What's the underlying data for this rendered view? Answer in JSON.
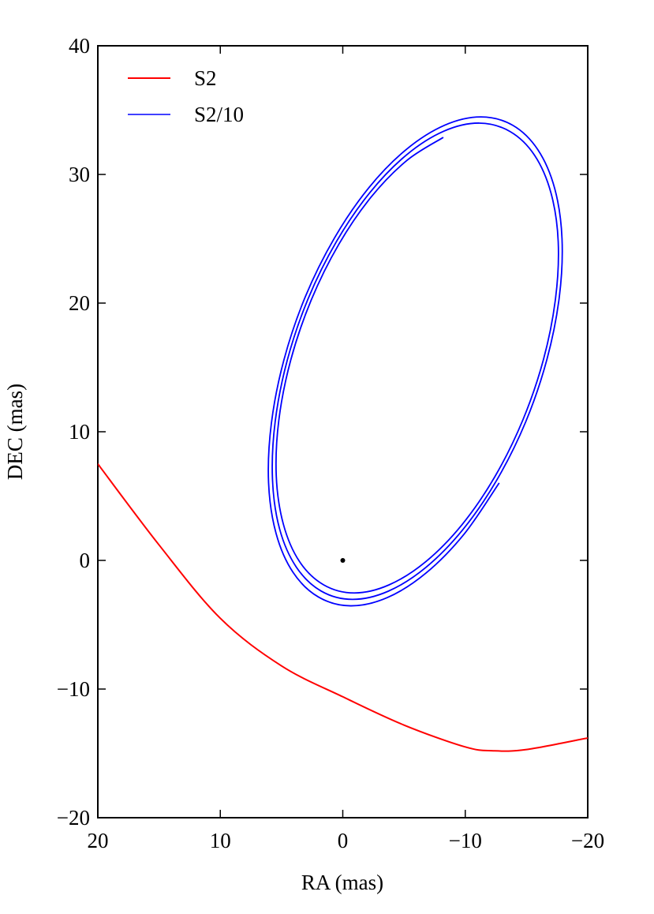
{
  "chart_data": {
    "type": "line",
    "x_label": "RA (mas)",
    "y_label": "DEC (mas)",
    "xlim": [
      20,
      -20
    ],
    "ylim": [
      -20,
      40
    ],
    "xticks": [
      20,
      10,
      0,
      {
        "value": -10,
        "label": "−10"
      },
      {
        "value": -20,
        "label": "−20"
      }
    ],
    "yticks": [
      {
        "value": -20,
        "label": "−20"
      },
      {
        "value": -10,
        "label": "−10"
      },
      0,
      10,
      20,
      30,
      40
    ],
    "legend": "upper left",
    "series": [
      {
        "name": "S2",
        "color": "#ff0000",
        "x": [
          20,
          15,
          10,
          5,
          0,
          -5,
          -10,
          -12.3,
          -15,
          -20
        ],
        "values": [
          7.5,
          1.2,
          -4.5,
          -8.2,
          -10.6,
          -12.8,
          -14.5,
          -14.8,
          -14.7,
          -13.8
        ]
      },
      {
        "name": "S2/10",
        "color": "#0000ff",
        "x": [
          -12.77,
          -9.92,
          -6.8,
          -3.64,
          -0.64,
          1.98,
          4.06,
          5.45,
          6.06,
          5.83,
          4.81,
          3.06,
          0.68,
          -2.13,
          -5.21,
          -8.33,
          -11.28,
          -13.88,
          -15.93,
          -17.3,
          -17.9,
          -17.68,
          -16.67,
          -14.94,
          -12.59,
          -9.82,
          -6.78,
          -3.7,
          -0.79,
          1.77,
          3.8,
          5.16,
          5.74,
          5.52,
          4.53,
          2.82,
          0.5,
          -2.23,
          -5.23,
          -8.27,
          -11.15,
          -13.67,
          -15.66,
          -17.0,
          -17.59,
          -17.37,
          -16.39,
          -14.7,
          -12.42,
          -9.72,
          -6.76,
          -3.76,
          -0.93,
          1.56,
          3.54,
          4.85,
          5.43,
          5.22,
          4.25,
          2.58,
          0.33,
          -2.33,
          -5.25,
          -8.21
        ],
        "values": [
          6.02,
          2.06,
          -0.98,
          -2.89,
          -3.53,
          -2.85,
          -0.93,
          2.11,
          6.05,
          10.65,
          15.57,
          20.49,
          25.06,
          28.97,
          31.96,
          33.83,
          34.47,
          33.82,
          31.92,
          28.92,
          25.02,
          20.48,
          15.63,
          10.78,
          6.27,
          2.41,
          -0.55,
          -2.4,
          -3.03,
          -2.38,
          -0.51,
          2.45,
          6.31,
          10.78,
          15.57,
          20.36,
          24.81,
          28.61,
          31.54,
          33.37,
          33.99,
          33.33,
          31.49,
          28.56,
          24.77,
          20.35,
          15.63,
          10.91,
          6.51,
          2.76,
          -0.11,
          -1.91,
          -2.53,
          -1.9,
          -0.08,
          2.81,
          6.55,
          10.91,
          15.57,
          20.23,
          24.56,
          28.26,
          31.1,
          32.88
        ]
      }
    ],
    "points": {
      "x": [
        0
      ],
      "values": [
        0
      ],
      "color": "#000000"
    }
  }
}
